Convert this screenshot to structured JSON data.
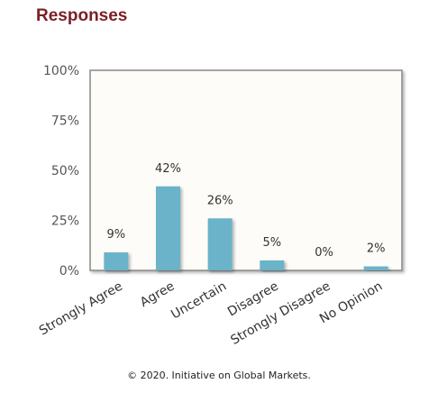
{
  "header": {
    "title": "Responses"
  },
  "chart_data": {
    "type": "bar",
    "title": "",
    "xlabel": "",
    "ylabel": "",
    "categories": [
      "Strongly Agree",
      "Agree",
      "Uncertain",
      "Disagree",
      "Strongly Disagree",
      "No Opinion"
    ],
    "values": [
      9,
      42,
      26,
      5,
      0,
      2
    ],
    "data_labels": [
      "9%",
      "42%",
      "26%",
      "5%",
      "0%",
      "2%"
    ],
    "ylim": [
      0,
      100
    ],
    "yticks": [
      0,
      25,
      50,
      75,
      100
    ],
    "ytick_labels": [
      "0%",
      "25%",
      "50%",
      "75%",
      "100%"
    ],
    "grid": false,
    "legend": "none",
    "colors": {
      "bar": "#6bb3c8",
      "plot_background": "#fdfcf8",
      "plot_border": "#888888",
      "title": "#7a1f24",
      "tick_text": "#555555",
      "label_text": "#333333"
    }
  },
  "footer": {
    "copyright": "© 2020. Initiative on Global Markets."
  }
}
